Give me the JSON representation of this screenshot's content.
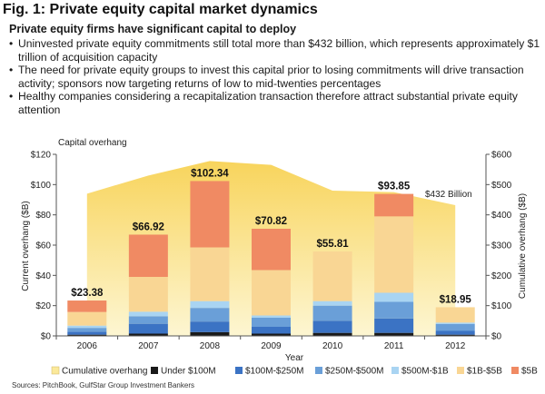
{
  "header": {
    "title": "Fig. 1: Private equity capital market dynamics",
    "subtitle": "Private equity firms have significant capital to deploy",
    "bullets": [
      "Uninvested private equity commitments still total more than $432 billion, which represents approximately $1 trillion of acquisition capacity",
      "The need for private equity groups to invest this capital prior to losing commitments will drive transaction activity; sponsors now targeting returns of low to mid-twenties percentages",
      "Healthy companies considering a recapitalization transaction therefore attract substantial private equity attention"
    ],
    "bullet_glyph": "•"
  },
  "chart_data": {
    "type": "bar",
    "stacked": true,
    "categories": [
      "2006",
      "2007",
      "2008",
      "2009",
      "2010",
      "2011",
      "2012"
    ],
    "xlabel": "Year",
    "ylabel": "Current overhang ($B)",
    "y2label": "Cumulative overhang ($B)",
    "ylim": [
      0,
      120
    ],
    "y2lim": [
      0,
      600
    ],
    "yticks": [
      "$0",
      "$20",
      "$40",
      "$60",
      "$80",
      "$100",
      "$120"
    ],
    "y2ticks": [
      "$0",
      "$100",
      "$200",
      "$300",
      "$400",
      "$500",
      "$600"
    ],
    "area_caption": "Capital overhang",
    "totals_labels": [
      "$23.38",
      "$66.92",
      "$102.34",
      "$70.82",
      "$55.81",
      "$93.85",
      "$18.95"
    ],
    "totals": [
      23.38,
      66.92,
      102.34,
      70.82,
      55.81,
      93.85,
      18.95
    ],
    "series": [
      {
        "name": "Under $100M",
        "color": "#1a1a1a",
        "values": [
          0.8,
          1.5,
          2.5,
          1.5,
          2.0,
          2.0,
          0.8
        ]
      },
      {
        "name": "$100M-$250M",
        "color": "#3b73c4",
        "values": [
          2.0,
          6.5,
          7.0,
          4.5,
          8.0,
          9.5,
          2.5
        ]
      },
      {
        "name": "$250M-$500M",
        "color": "#6a9fd8",
        "values": [
          2.5,
          5.0,
          9.0,
          6.0,
          10.0,
          11.0,
          4.5
        ]
      },
      {
        "name": "$500M-$1B",
        "color": "#a9d4f2",
        "values": [
          1.5,
          3.0,
          4.5,
          1.5,
          3.0,
          6.0,
          1.0
        ]
      },
      {
        "name": "$1B-$5B",
        "color": "#f9d694",
        "values": [
          9.0,
          23.0,
          35.5,
          30.0,
          32.81,
          50.5,
          10.15
        ]
      },
      {
        "name": "$5B",
        "color": "#f08a63",
        "values": [
          7.58,
          27.92,
          43.84,
          27.32,
          0.0,
          14.85,
          0.0
        ]
      }
    ],
    "area_series": {
      "name": "Cumulative overhang",
      "color": "#f6dc7d",
      "values": [
        470,
        530,
        578,
        565,
        480,
        475,
        432
      ],
      "annotation": "$432 Billion"
    }
  },
  "footer": {
    "source": "Sources: PitchBook, GulfStar Group Investment Bankers"
  }
}
